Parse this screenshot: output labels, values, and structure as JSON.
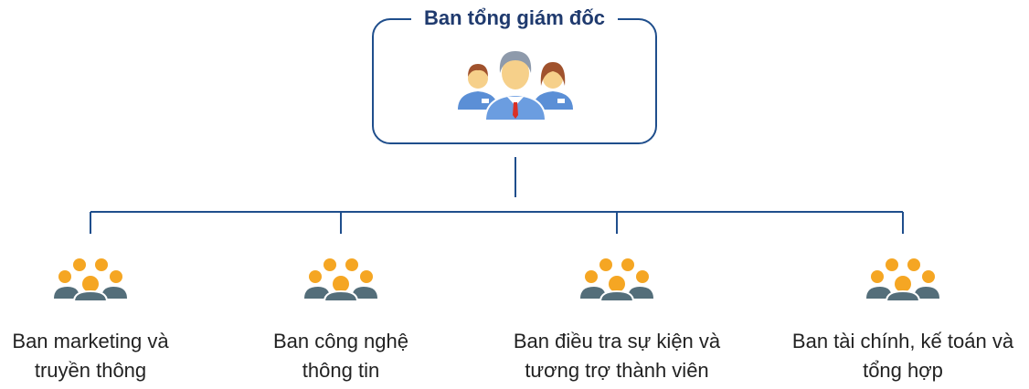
{
  "top": {
    "title": "Ban tổng giám đốc"
  },
  "departments": [
    {
      "line1": "Ban marketing và",
      "line2": "truyền thông"
    },
    {
      "line1": "Ban công nghệ",
      "line2": "thông tin"
    },
    {
      "line1": "Ban điều tra sự kiện và",
      "line2": "tương trợ thành viên"
    },
    {
      "line1": "Ban tài chính, kế toán và",
      "line2": "tổng hợp"
    }
  ],
  "colors": {
    "line": "#1f4e8c",
    "title": "#1f3a6e",
    "people_orange": "#f5a623",
    "people_dark": "#546e7a",
    "exec_shirt": "#5b8fd6"
  },
  "icons": {
    "top": "executive-team-icon",
    "department": "group-people-icon"
  }
}
